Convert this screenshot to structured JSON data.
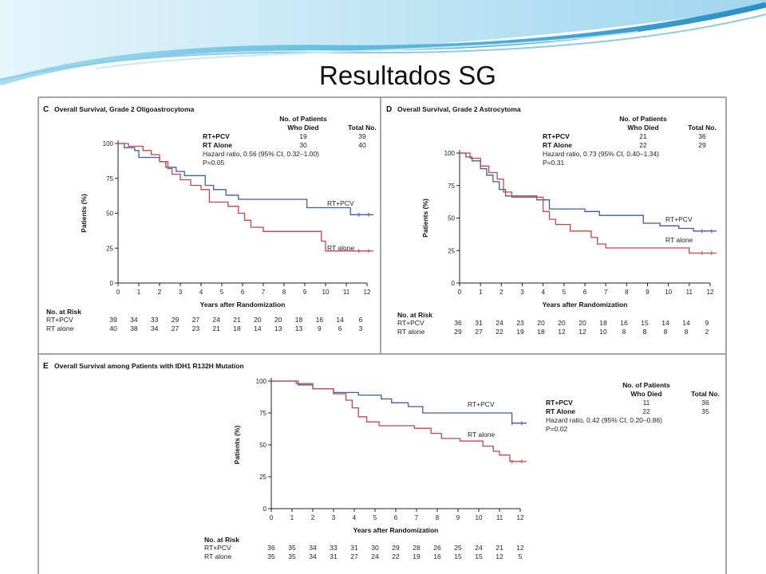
{
  "slide": {
    "title": "Resultados SG"
  },
  "colors": {
    "rt_pcv": "#3f5ba8",
    "rt_alone": "#c8464a",
    "axis": "#222222",
    "frame": "#8a8a8a"
  },
  "chart_data": [
    {
      "panel": "C",
      "type": "line",
      "title": "Overall Survival, Grade 2 Oligoastrocytoma",
      "xlabel": "Years after Randomization",
      "ylabel": "Patients (%)",
      "xlim": [
        0,
        12
      ],
      "ylim": [
        0,
        100
      ],
      "xticks": [
        0,
        1,
        2,
        3,
        4,
        5,
        6,
        7,
        8,
        9,
        10,
        11,
        12
      ],
      "yticks": [
        0,
        25,
        50,
        75,
        100
      ],
      "series": [
        {
          "name": "RT+PCV",
          "label": "RT+PCV",
          "color": "#3f5ba8",
          "x": [
            0,
            0.3,
            0.8,
            1.0,
            1.5,
            2.0,
            2.3,
            2.8,
            3.2,
            4.2,
            4.6,
            5.2,
            5.8,
            6.3,
            8.0,
            9.1,
            10.3,
            11.2,
            12.3
          ],
          "y": [
            100,
            97,
            95,
            90,
            90,
            87,
            83,
            80,
            77,
            70,
            67,
            63,
            60,
            60,
            60,
            54,
            54,
            49,
            49
          ]
        },
        {
          "name": "RT alone",
          "label": "RT alone",
          "color": "#c8464a",
          "x": [
            0,
            0.5,
            1.2,
            1.6,
            2.0,
            2.4,
            2.6,
            3.0,
            3.5,
            4.0,
            4.4,
            5.3,
            5.8,
            6.1,
            6.4,
            7.0,
            9.8,
            10.0,
            12.3
          ],
          "y": [
            100,
            98,
            95,
            92,
            87,
            82,
            78,
            74,
            70,
            67,
            58,
            55,
            50,
            45,
            40,
            37,
            30,
            23,
            23
          ]
        }
      ],
      "table": {
        "header": [
          "",
          "No. of Patients Who Died",
          "Total No."
        ],
        "rows": [
          [
            "RT+PCV",
            "19",
            "39"
          ],
          [
            "RT Alone",
            "30",
            "40"
          ]
        ],
        "hr": "Hazard ratio, 0.56 (95% CI, 0.32–1.00)",
        "p": "P=0.05"
      },
      "risk": {
        "title": "No. at Risk",
        "rows": [
          {
            "label": "RT+PCV",
            "values": [
              "39",
              "34",
              "33",
              "29",
              "27",
              "24",
              "21",
              "20",
              "20",
              "18",
              "16",
              "14",
              "6"
            ]
          },
          {
            "label": "RT alone",
            "values": [
              "40",
              "38",
              "34",
              "27",
              "23",
              "21",
              "18",
              "14",
              "13",
              "13",
              "9",
              "6",
              "3"
            ]
          }
        ]
      }
    },
    {
      "panel": "D",
      "type": "line",
      "title": "Overall Survival, Grade 2 Astrocytoma",
      "xlabel": "Years after Randomization",
      "ylabel": "Patients (%)",
      "xlim": [
        0,
        12
      ],
      "ylim": [
        0,
        100
      ],
      "xticks": [
        0,
        1,
        2,
        3,
        4,
        5,
        6,
        7,
        8,
        9,
        10,
        11,
        12
      ],
      "yticks": [
        0,
        25,
        50,
        75,
        100
      ],
      "series": [
        {
          "name": "RT+PCV",
          "label": "RT+PCV",
          "color": "#3f5ba8",
          "x": [
            0,
            0.3,
            0.6,
            1.0,
            1.3,
            1.6,
            1.9,
            2.2,
            3.7,
            4.3,
            5.2,
            6.0,
            6.7,
            8.8,
            9.6,
            10.5,
            11.2,
            12.3
          ],
          "y": [
            100,
            97,
            94,
            88,
            83,
            78,
            72,
            67,
            64,
            57,
            57,
            55,
            52,
            46,
            44,
            42,
            40,
            40
          ]
        },
        {
          "name": "RT alone",
          "label": "RT alone",
          "color": "#c8464a",
          "x": [
            0,
            0.5,
            1.0,
            1.4,
            1.8,
            2.1,
            2.5,
            3.6,
            4.0,
            4.3,
            4.6,
            5.3,
            6.3,
            6.6,
            7.0,
            11.0,
            12.3
          ],
          "y": [
            100,
            96,
            90,
            85,
            80,
            70,
            66,
            66,
            55,
            49,
            45,
            40,
            35,
            30,
            27,
            23,
            23
          ]
        }
      ],
      "table": {
        "header": [
          "",
          "No. of Patients Who Died",
          "Total No."
        ],
        "rows": [
          [
            "RT+PCV",
            "21",
            "36"
          ],
          [
            "RT Alone",
            "22",
            "29"
          ]
        ],
        "hr": "Hazard ratio, 0.73 (95% CI, 0.40–1.34)",
        "p": "P=0.31"
      },
      "risk": {
        "title": "No. at Risk",
        "rows": [
          {
            "label": "RT+PCV",
            "values": [
              "36",
              "31",
              "24",
              "23",
              "20",
              "20",
              "20",
              "18",
              "16",
              "15",
              "14",
              "14",
              "9"
            ]
          },
          {
            "label": "RT alone",
            "values": [
              "29",
              "27",
              "22",
              "19",
              "18",
              "12",
              "12",
              "10",
              "8",
              "8",
              "8",
              "8",
              "2"
            ]
          }
        ]
      }
    },
    {
      "panel": "E",
      "type": "line",
      "title": "Overall Survival among Patients with IDH1 R132H Mutation",
      "xlabel": "Years after Randomization",
      "ylabel": "Patients (%)",
      "xlim": [
        0,
        12
      ],
      "ylim": [
        0,
        100
      ],
      "xticks": [
        0,
        1,
        2,
        3,
        4,
        5,
        6,
        7,
        8,
        9,
        10,
        11,
        12
      ],
      "yticks": [
        0,
        25,
        50,
        75,
        100
      ],
      "series": [
        {
          "name": "RT+PCV",
          "label": "RT+PCV",
          "color": "#3f5ba8",
          "x": [
            0,
            1.3,
            2.0,
            3.0,
            4.2,
            5.3,
            5.8,
            6.6,
            7.3,
            11.3,
            11.6,
            12.3
          ],
          "y": [
            100,
            97,
            94,
            91,
            89,
            86,
            83,
            80,
            75,
            75,
            67,
            67
          ]
        },
        {
          "name": "RT alone",
          "label": "RT alone",
          "color": "#c8464a",
          "x": [
            0,
            1.2,
            2.0,
            3.0,
            3.6,
            3.9,
            4.2,
            4.6,
            5.2,
            6.9,
            7.7,
            8.2,
            9.1,
            10.2,
            10.7,
            11.0,
            11.5,
            12.3
          ],
          "y": [
            100,
            98,
            94,
            90,
            85,
            79,
            72,
            68,
            65,
            63,
            59,
            55,
            53,
            49,
            45,
            42,
            37,
            37
          ]
        }
      ],
      "table": {
        "header": [
          "",
          "No. of Patients Who Died",
          "Total No."
        ],
        "rows": [
          [
            "RT+PCV",
            "11",
            "36"
          ],
          [
            "RT Alone",
            "22",
            "35"
          ]
        ],
        "hr": "Hazard ratio, 0.42 (95% CI, 0.20–0.86)",
        "p": "P=0.02"
      },
      "risk": {
        "title": "No. at Risk",
        "rows": [
          {
            "label": "RT+PCV",
            "values": [
              "36",
              "35",
              "34",
              "33",
              "31",
              "30",
              "29",
              "28",
              "26",
              "25",
              "24",
              "21",
              "12"
            ]
          },
          {
            "label": "RT alone",
            "values": [
              "35",
              "35",
              "34",
              "31",
              "27",
              "24",
              "22",
              "19",
              "16",
              "15",
              "15",
              "12",
              "5"
            ]
          }
        ]
      }
    }
  ]
}
